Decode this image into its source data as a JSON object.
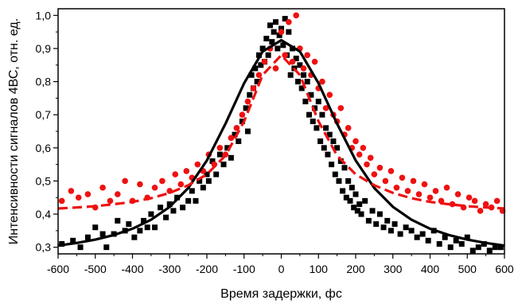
{
  "chart_data": {
    "type": "scatter",
    "title": "",
    "xlabel": "Время задержки, фс",
    "ylabel": "Интенсивности сигналов 4ВС, отн. ед.",
    "xlim": [
      -600,
      600
    ],
    "ylim": [
      0.28,
      1.02
    ],
    "x_ticks": [
      -600,
      -500,
      -400,
      -300,
      -200,
      -100,
      0,
      100,
      200,
      300,
      400,
      500,
      600
    ],
    "x_tick_labels": [
      "-600",
      "-500",
      "-400",
      "-300",
      "-200",
      "-100",
      "0",
      "100",
      "200",
      "300",
      "400",
      "500",
      "600"
    ],
    "y_ticks": [
      0.3,
      0.4,
      0.5,
      0.6,
      0.7,
      0.8,
      0.9,
      1.0
    ],
    "y_tick_labels": [
      "0,3",
      "0,4",
      "0,5",
      "0,6",
      "0,7",
      "0,8",
      "0,9",
      "1,0"
    ],
    "grid": false,
    "legend": "none",
    "series": [
      {
        "kind": "scatter",
        "marker": "square",
        "color": "#000000",
        "x": [
          -590,
          -560,
          -540,
          -520,
          -500,
          -480,
          -470,
          -450,
          -440,
          -420,
          -410,
          -395,
          -380,
          -370,
          -360,
          -350,
          -340,
          -325,
          -310,
          -300,
          -290,
          -280,
          -265,
          -250,
          -240,
          -230,
          -220,
          -210,
          -200,
          -195,
          -185,
          -175,
          -165,
          -155,
          -145,
          -135,
          -125,
          -115,
          -105,
          -95,
          -90,
          -85,
          -80,
          -75,
          -70,
          -65,
          -60,
          -55,
          -50,
          -45,
          -40,
          -35,
          -30,
          -25,
          -20,
          -15,
          -10,
          -5,
          0,
          5,
          10,
          15,
          20,
          25,
          30,
          35,
          40,
          45,
          50,
          55,
          60,
          65,
          70,
          75,
          80,
          85,
          90,
          95,
          100,
          105,
          110,
          115,
          120,
          125,
          130,
          135,
          140,
          145,
          150,
          155,
          160,
          165,
          170,
          175,
          180,
          185,
          190,
          195,
          200,
          205,
          210,
          215,
          225,
          235,
          245,
          255,
          265,
          275,
          285,
          295,
          305,
          320,
          335,
          350,
          365,
          380,
          395,
          410,
          425,
          440,
          455,
          470,
          485,
          500,
          515,
          530,
          545,
          560,
          575,
          590
        ],
        "y": [
          0.31,
          0.32,
          0.3,
          0.33,
          0.36,
          0.34,
          0.3,
          0.34,
          0.38,
          0.35,
          0.37,
          0.33,
          0.35,
          0.38,
          0.36,
          0.4,
          0.36,
          0.42,
          0.39,
          0.43,
          0.41,
          0.45,
          0.42,
          0.44,
          0.47,
          0.44,
          0.5,
          0.48,
          0.52,
          0.5,
          0.56,
          0.52,
          0.58,
          0.55,
          0.6,
          0.57,
          0.64,
          0.62,
          0.68,
          0.72,
          0.65,
          0.76,
          0.82,
          0.78,
          0.84,
          0.8,
          0.88,
          0.85,
          0.9,
          0.86,
          0.93,
          0.88,
          0.97,
          0.92,
          0.95,
          0.98,
          0.9,
          0.94,
          0.96,
          0.91,
          0.99,
          0.88,
          0.95,
          0.82,
          0.9,
          0.84,
          0.87,
          0.8,
          0.85,
          0.78,
          0.82,
          0.74,
          0.8,
          0.7,
          0.76,
          0.68,
          0.72,
          0.66,
          0.74,
          0.62,
          0.7,
          0.6,
          0.66,
          0.58,
          0.64,
          0.55,
          0.62,
          0.52,
          0.6,
          0.5,
          0.56,
          0.47,
          0.54,
          0.45,
          0.5,
          0.44,
          0.48,
          0.42,
          0.46,
          0.41,
          0.43,
          0.4,
          0.44,
          0.38,
          0.41,
          0.37,
          0.4,
          0.36,
          0.38,
          0.35,
          0.37,
          0.34,
          0.36,
          0.35,
          0.33,
          0.34,
          0.32,
          0.35,
          0.31,
          0.33,
          0.3,
          0.32,
          0.31,
          0.33,
          0.29,
          0.3,
          0.31,
          0.29,
          0.3,
          0.3
        ]
      },
      {
        "kind": "scatter",
        "marker": "circle",
        "color": "#ee1111",
        "x": [
          -590,
          -565,
          -545,
          -520,
          -500,
          -480,
          -460,
          -440,
          -420,
          -400,
          -380,
          -360,
          -340,
          -320,
          -300,
          -285,
          -270,
          -255,
          -240,
          -225,
          -210,
          -195,
          -180,
          -165,
          -150,
          -135,
          -120,
          -105,
          -90,
          -75,
          -60,
          -45,
          -30,
          -15,
          0,
          10,
          20,
          30,
          40,
          50,
          60,
          70,
          80,
          90,
          100,
          110,
          120,
          130,
          140,
          150,
          160,
          170,
          180,
          190,
          200,
          210,
          220,
          230,
          240,
          250,
          265,
          280,
          295,
          310,
          325,
          340,
          355,
          370,
          385,
          400,
          415,
          430,
          445,
          460,
          475,
          490,
          505,
          520,
          535,
          550,
          565,
          580,
          595
        ],
        "y": [
          0.44,
          0.47,
          0.45,
          0.46,
          0.42,
          0.48,
          0.44,
          0.46,
          0.5,
          0.44,
          0.49,
          0.45,
          0.48,
          0.5,
          0.47,
          0.52,
          0.49,
          0.53,
          0.51,
          0.55,
          0.53,
          0.58,
          0.55,
          0.6,
          0.58,
          0.63,
          0.66,
          0.7,
          0.74,
          0.78,
          0.82,
          0.86,
          0.9,
          0.84,
          0.95,
          0.88,
          0.98,
          0.86,
          1.0,
          0.9,
          0.84,
          0.88,
          0.82,
          0.86,
          0.78,
          0.8,
          0.72,
          0.76,
          0.7,
          0.68,
          0.72,
          0.64,
          0.66,
          0.6,
          0.62,
          0.58,
          0.6,
          0.55,
          0.57,
          0.52,
          0.54,
          0.5,
          0.53,
          0.48,
          0.51,
          0.47,
          0.5,
          0.46,
          0.49,
          0.45,
          0.47,
          0.44,
          0.48,
          0.43,
          0.46,
          0.42,
          0.45,
          0.44,
          0.41,
          0.43,
          0.42,
          0.44,
          0.41
        ]
      },
      {
        "kind": "line",
        "style": "solid",
        "color": "#000000",
        "x": [
          -600,
          -550,
          -500,
          -450,
          -400,
          -350,
          -300,
          -250,
          -200,
          -150,
          -100,
          -50,
          0,
          50,
          100,
          150,
          200,
          250,
          300,
          350,
          400,
          450,
          500,
          550,
          600
        ],
        "y": [
          0.305,
          0.313,
          0.323,
          0.337,
          0.356,
          0.383,
          0.422,
          0.479,
          0.562,
          0.673,
          0.795,
          0.891,
          0.925,
          0.891,
          0.795,
          0.673,
          0.562,
          0.479,
          0.422,
          0.383,
          0.356,
          0.337,
          0.323,
          0.313,
          0.305
        ]
      },
      {
        "kind": "line",
        "style": "dashed",
        "color": "#ee1111",
        "x": [
          -600,
          -550,
          -500,
          -450,
          -400,
          -350,
          -300,
          -250,
          -200,
          -150,
          -100,
          -50,
          0,
          50,
          100,
          150,
          200,
          250,
          300,
          350,
          400,
          450,
          500,
          550,
          600
        ],
        "y": [
          0.417,
          0.42,
          0.424,
          0.43,
          0.437,
          0.448,
          0.464,
          0.487,
          0.52,
          0.577,
          0.68,
          0.82,
          0.88,
          0.82,
          0.68,
          0.577,
          0.52,
          0.487,
          0.464,
          0.448,
          0.437,
          0.43,
          0.424,
          0.42,
          0.417
        ]
      }
    ]
  }
}
